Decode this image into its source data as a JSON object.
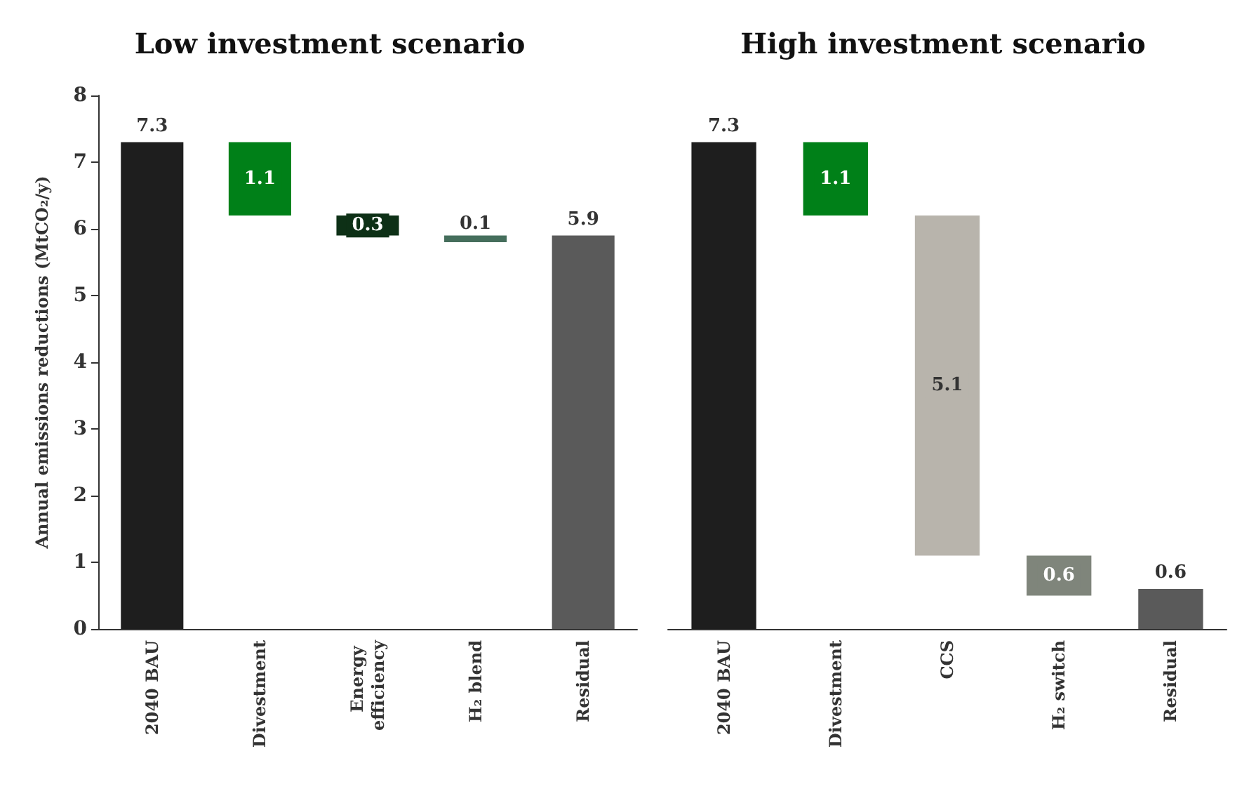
{
  "chart_data": [
    {
      "type": "bar",
      "title": "Low investment scenario",
      "ylabel": "Annual emissions reductions (MtCO₂/y)",
      "categories": [
        "2040 BAU",
        "Divestment",
        "Energy efficiency",
        "H₂ blend",
        "Residual"
      ],
      "values": [
        7.3,
        1.1,
        0.3,
        0.1,
        5.9
      ],
      "base": [
        0,
        6.2,
        5.9,
        5.8,
        0
      ],
      "colors": [
        "#1e1e1e",
        "#008018",
        "#0d3016",
        "#456e5c",
        "#5a5a5a"
      ],
      "ylim": [
        0,
        8
      ],
      "yticks": [
        0,
        1,
        2,
        3,
        4,
        5,
        6,
        7,
        8
      ],
      "grid": false,
      "data_labels": true
    },
    {
      "type": "bar",
      "title": "High investment scenario",
      "categories": [
        "2040 BAU",
        "Divestment",
        "CCS",
        "H₂ switch",
        "Residual"
      ],
      "values": [
        7.3,
        1.1,
        5.1,
        0.6,
        0.6
      ],
      "base": [
        0,
        6.2,
        1.1,
        0.5,
        0
      ],
      "colors": [
        "#1e1e1e",
        "#008018",
        "#b8b4ac",
        "#7f857b",
        "#5a5a5a"
      ],
      "ylim": [
        0,
        8
      ],
      "yticks": [
        0,
        1,
        2,
        3,
        4,
        5,
        6,
        7,
        8
      ],
      "tick_labels": "x",
      "grid": false,
      "data_labels": true
    }
  ]
}
